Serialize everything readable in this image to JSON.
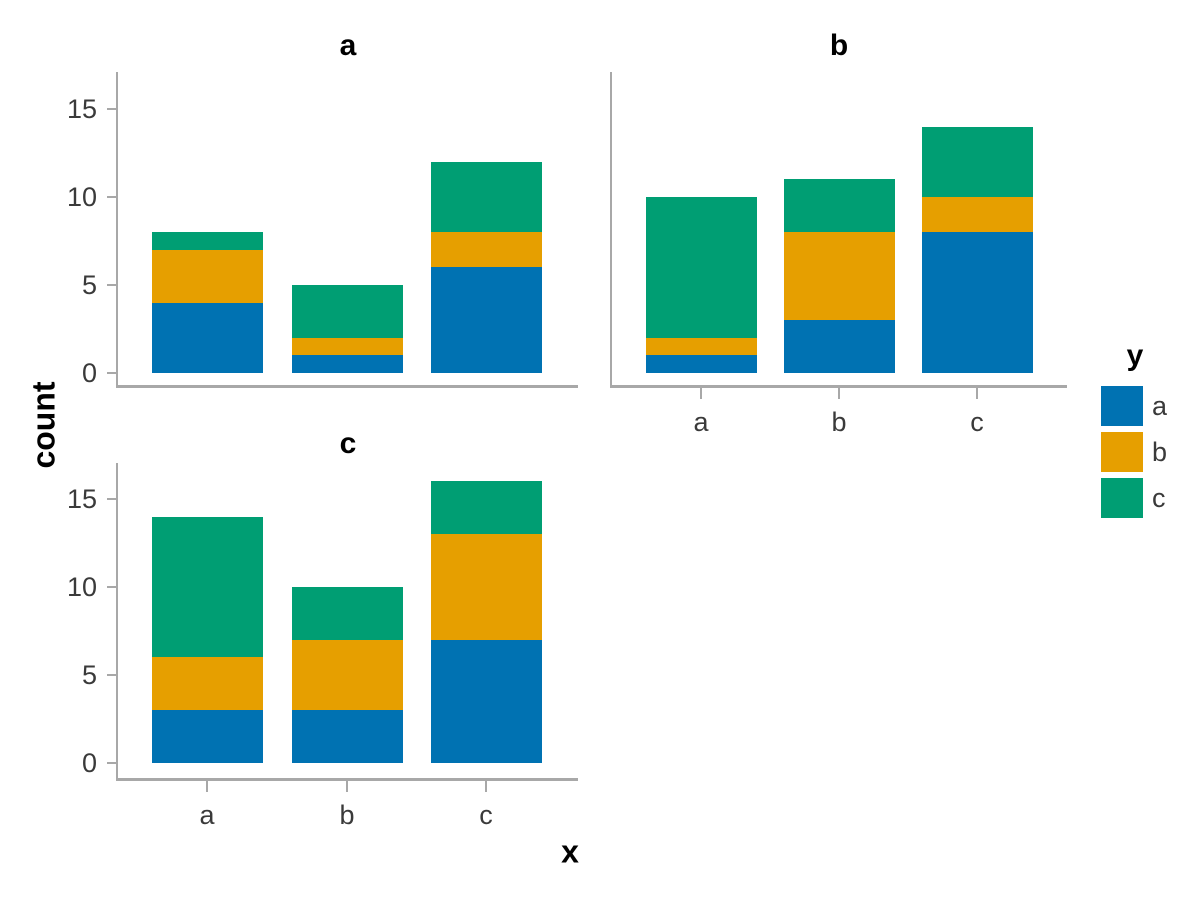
{
  "figure": {
    "background": "#ffffff",
    "axis_line_color": "#a8a8a8",
    "tick_label_color": "#3a3a3a",
    "title_color": "#000000"
  },
  "chart_data": {
    "type": "bar",
    "stacked": true,
    "faceted": true,
    "title": "",
    "xlabel": "x",
    "ylabel": "count",
    "legend_title": "y",
    "legend_position": "right",
    "grid": false,
    "categories": [
      "a",
      "b",
      "c"
    ],
    "series_names": [
      "a",
      "b",
      "c"
    ],
    "colors": {
      "a": "#0072B2",
      "b": "#E69F00",
      "c": "#009E73"
    },
    "yticks": [
      0,
      5,
      10,
      15
    ],
    "ylim": [
      0,
      17.7
    ],
    "facets": [
      {
        "title": "a",
        "series": [
          {
            "name": "a",
            "values": [
              4,
              1,
              6
            ]
          },
          {
            "name": "b",
            "values": [
              3,
              1,
              2
            ]
          },
          {
            "name": "c",
            "values": [
              1,
              3,
              4
            ]
          }
        ],
        "totals": [
          8,
          5,
          12
        ]
      },
      {
        "title": "b",
        "series": [
          {
            "name": "a",
            "values": [
              1,
              3,
              8
            ]
          },
          {
            "name": "b",
            "values": [
              1,
              5,
              2
            ]
          },
          {
            "name": "c",
            "values": [
              8,
              3,
              4
            ]
          }
        ],
        "totals": [
          10,
          11,
          14
        ]
      },
      {
        "title": "c",
        "series": [
          {
            "name": "a",
            "values": [
              3,
              3,
              7
            ]
          },
          {
            "name": "b",
            "values": [
              3,
              4,
              6
            ]
          },
          {
            "name": "c",
            "values": [
              8,
              3,
              3
            ]
          }
        ],
        "totals": [
          14,
          10,
          16
        ]
      }
    ]
  }
}
